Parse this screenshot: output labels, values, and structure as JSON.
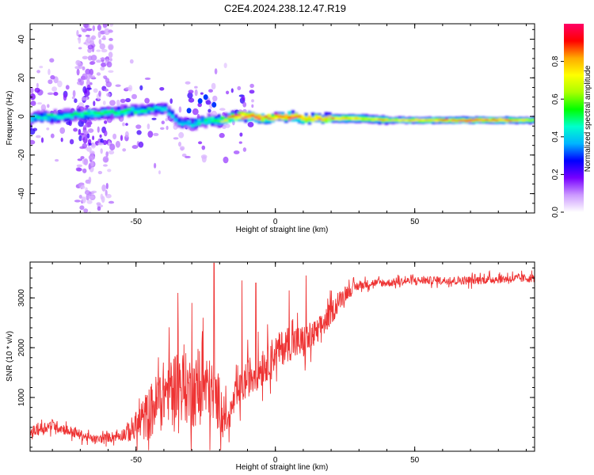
{
  "figure": {
    "title": "C2E4.2024.238.12.47.R19"
  },
  "chart_data": [
    {
      "type": "heatmap",
      "xlabel": "Height of straight line (km)",
      "ylabel": "Frequency (Hz)",
      "xlim": [
        -88,
        93
      ],
      "ylim": [
        -50,
        48
      ],
      "xticks": [
        -50,
        0,
        50
      ],
      "yticks": [
        -40,
        -20,
        0,
        20,
        40
      ],
      "ridge": {
        "description_free_points_x": [
          -88,
          -80,
          -70,
          -60,
          -50,
          -40,
          -35,
          -30,
          -25,
          -20,
          -15,
          -10,
          -5,
          0,
          5,
          10,
          15,
          20,
          30,
          40,
          50,
          60,
          70,
          80,
          93
        ],
        "freq": [
          -1,
          0,
          1,
          2,
          3,
          4,
          -3,
          -4,
          -2,
          -2,
          0,
          0,
          -1,
          0,
          0,
          -1,
          -1,
          -1,
          -1,
          -2,
          -2,
          -2,
          -2,
          -2,
          -2
        ],
        "amplitude": [
          0.45,
          0.5,
          0.5,
          0.55,
          0.5,
          0.45,
          0.4,
          0.45,
          0.5,
          0.6,
          0.95,
          0.95,
          0.9,
          0.9,
          0.95,
          0.9,
          0.85,
          0.8,
          0.75,
          0.75,
          0.8,
          0.85,
          0.9,
          0.9,
          0.7
        ]
      },
      "colorbar": {
        "label": "Normalized spectral amplitude",
        "range": [
          0,
          1
        ],
        "ticks": [
          "0.0",
          "0.2",
          "0.4",
          "0.6",
          "0.8"
        ],
        "colors": [
          "#ffffff",
          "#cc99ff",
          "#7700ff",
          "#0000ff",
          "#00b4ff",
          "#00ffcc",
          "#00ff00",
          "#aaff00",
          "#ffff00",
          "#ffaa00",
          "#ff0000",
          "#ff0066"
        ]
      }
    },
    {
      "type": "line",
      "xlabel": "Height of straight line (km)",
      "ylabel": "SNR (10 * v/v)",
      "xlim": [
        -88,
        93
      ],
      "ylim": [
        -80,
        3720
      ],
      "xticks": [
        -50,
        0,
        50
      ],
      "yticks": [
        1000,
        2000,
        3000
      ],
      "color": "#ee3333",
      "trend": {
        "x": [
          -88,
          -80,
          -70,
          -65,
          -60,
          -55,
          -50,
          -45,
          -40,
          -35,
          -30,
          -25,
          -20,
          -17,
          -15,
          -10,
          -5,
          0,
          5,
          10,
          15,
          20,
          25,
          30,
          35,
          40,
          50,
          60,
          70,
          80,
          93
        ],
        "y": [
          300,
          450,
          250,
          150,
          200,
          250,
          400,
          700,
          1100,
          1300,
          1100,
          1200,
          900,
          500,
          900,
          1400,
          1600,
          1900,
          2100,
          2100,
          2300,
          2700,
          3100,
          3250,
          3300,
          3300,
          3350,
          3350,
          3350,
          3380,
          3400
        ],
        "noise": [
          150,
          150,
          130,
          100,
          120,
          150,
          400,
          700,
          800,
          900,
          900,
          900,
          700,
          300,
          400,
          500,
          500,
          450,
          450,
          450,
          350,
          300,
          200,
          120,
          100,
          100,
          100,
          100,
          110,
          110,
          110
        ]
      },
      "peaks": {
        "x": [
          -35,
          -30,
          -26,
          -22,
          -12,
          -7,
          5,
          11
        ],
        "y": [
          3100,
          2900,
          2600,
          3700,
          3350,
          3300,
          3150,
          3450
        ]
      }
    }
  ]
}
